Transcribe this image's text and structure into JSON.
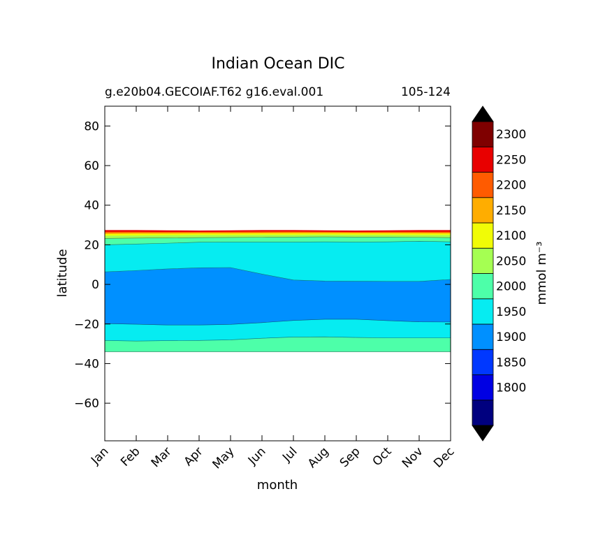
{
  "chart_data": {
    "type": "contourf",
    "title": "Indian Ocean DIC",
    "subtitle_left": "g.e20b04.GECOIAF.T62 g16.eval.001",
    "subtitle_right": "105-124",
    "xlabel": "month",
    "ylabel": "latitude",
    "x_categories": [
      "Jan",
      "Feb",
      "Mar",
      "Apr",
      "May",
      "Jun",
      "Jul",
      "Aug",
      "Sep",
      "Oct",
      "Nov",
      "Dec"
    ],
    "xlim": [
      0,
      11
    ],
    "ylim": [
      -79,
      90
    ],
    "y_ticks": [
      80,
      60,
      40,
      20,
      0,
      -20,
      -40,
      -60
    ],
    "y_tick_labels": [
      "80",
      "60",
      "40",
      "20",
      "0",
      "−20",
      "−40",
      "−60"
    ],
    "colorbar": {
      "label": "mmol m⁻³",
      "tick_values": [
        1800,
        1850,
        1900,
        1950,
        2000,
        2050,
        2100,
        2150,
        2200,
        2250,
        2300
      ],
      "tick_labels": [
        "1800",
        "1850",
        "1900",
        "1950",
        "2000",
        "2050",
        "2100",
        "2150",
        "2200",
        "2250",
        "2300"
      ],
      "levels": [
        1750,
        1775,
        1825,
        1875,
        1925,
        1975,
        2025,
        2075,
        2125,
        2175,
        2225,
        2275,
        2325
      ],
      "colors": [
        "#00007f",
        "#0000e3",
        "#0038ff",
        "#0090ff",
        "#06ecf1",
        "#4dffa9",
        "#a5ff52",
        "#f1fc06",
        "#ffad00",
        "#ff5b00",
        "#e80000",
        "#7f0000"
      ],
      "extend": "both",
      "extend_colors": [
        "#000000",
        "#000000"
      ]
    },
    "boundaries": {
      "months": [
        0,
        1,
        2,
        3,
        4,
        5,
        6,
        7,
        8,
        9,
        10,
        11
      ],
      "south_edge_1925": [
        -34,
        -34,
        -34,
        -34,
        -34,
        -34,
        -34,
        -34,
        -34,
        -34,
        -34,
        -34
      ],
      "b_1925_1975": [
        -28.3,
        -28.6,
        -28.4,
        -28.3,
        -28.0,
        -27.2,
        -26.6,
        -26.5,
        -26.8,
        -27.0,
        -27.0,
        -27.0
      ],
      "b_1975_1925_south": [
        -19.8,
        -20.1,
        -20.5,
        -20.5,
        -20.2,
        -19.3,
        -18.2,
        -17.6,
        -17.6,
        -18.3,
        -18.9,
        -19.0
      ],
      "b_1925_1975_north": [
        6.3,
        7.0,
        7.8,
        8.4,
        8.5,
        5.2,
        2.2,
        1.7,
        1.6,
        1.5,
        1.5,
        2.5
      ],
      "b_1975_2025": [
        20.0,
        20.4,
        20.8,
        21.3,
        21.4,
        21.4,
        21.4,
        21.5,
        21.4,
        21.5,
        21.8,
        21.5
      ],
      "b_2025_2075": [
        23.2,
        23.4,
        23.5,
        23.6,
        23.7,
        23.8,
        23.9,
        24.0,
        23.9,
        23.9,
        23.8,
        23.6
      ],
      "b_2075_2125": [
        24.7,
        24.8,
        24.9,
        25.0,
        25.0,
        25.1,
        25.1,
        25.2,
        25.1,
        25.1,
        25.0,
        25.0
      ],
      "b_2125_2175": [
        25.6,
        25.7,
        25.7,
        25.8,
        25.8,
        25.9,
        25.9,
        25.9,
        25.9,
        25.9,
        25.8,
        25.8
      ],
      "b_2175_2225": [
        26.1,
        26.2,
        26.2,
        26.3,
        26.3,
        26.3,
        26.4,
        26.4,
        26.3,
        26.3,
        26.3,
        26.2
      ],
      "b_2225_2275": [
        26.7,
        26.7,
        26.6,
        26.6,
        26.7,
        26.8,
        26.8,
        26.7,
        26.6,
        26.7,
        26.7,
        26.7
      ],
      "north_edge": [
        27.3,
        27.3,
        27.2,
        27.1,
        27.2,
        27.3,
        27.3,
        27.2,
        27.1,
        27.2,
        27.3,
        27.3
      ]
    }
  }
}
